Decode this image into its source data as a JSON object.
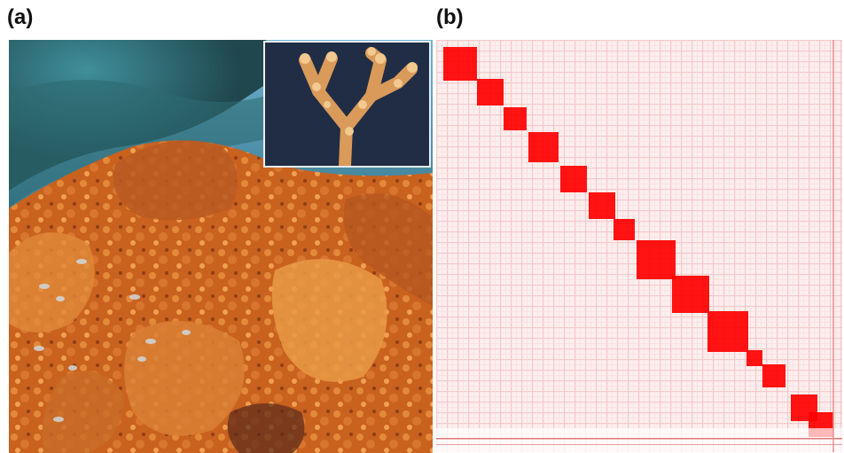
{
  "panels": {
    "a": {
      "label": "(a)"
    },
    "b": {
      "label": "(b)"
    }
  },
  "colors": {
    "contact_dark": "#ff0000",
    "contact_light": "#fbe6e6",
    "coral_orange": "#d9742b",
    "water_blue": "#4a8fae"
  },
  "icons": [
    "coral-reef-photo",
    "coral-branch-inset-photo",
    "hic-contact-map"
  ]
}
